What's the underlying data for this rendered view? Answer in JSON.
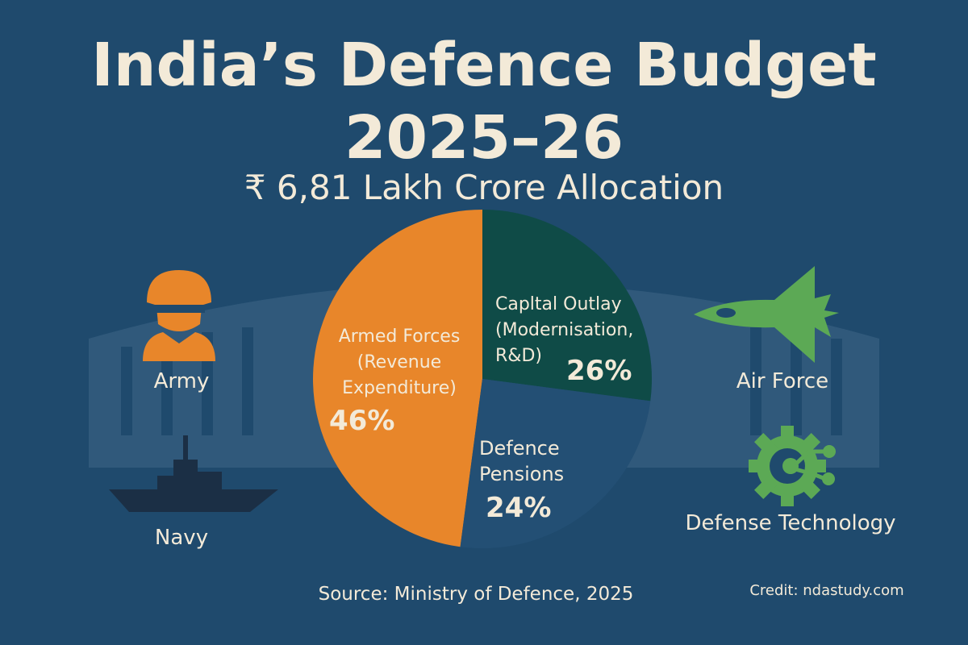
{
  "header": {
    "title_line1": "India’s Defence Budget",
    "title_line2": "2025–26",
    "subtitle": "₹ 6,81 Lakh Crore Allocation"
  },
  "chart_data": {
    "type": "pie",
    "title": "India’s Defence Budget 2025–26",
    "subtitle": "₹ 6,81 Lakh Crore Allocation",
    "slices": [
      {
        "label_lines": [
          "Armed Forces",
          "(Revenue",
          "Expenditure)"
        ],
        "value": 46,
        "value_label": "46%",
        "color": "#e8862a"
      },
      {
        "label_lines": [
          "Capltal Outlay",
          "(Modernisation,",
          "R&D)"
        ],
        "value": 26,
        "value_label": "26%",
        "color": "#0f4b47"
      },
      {
        "label_lines": [
          "Defence",
          "Pensions"
        ],
        "value": 24,
        "value_label": "24%",
        "color": "#234f74"
      }
    ]
  },
  "icons": [
    {
      "name": "soldier-icon",
      "label": "Army",
      "color": "#e8862a"
    },
    {
      "name": "warship-icon",
      "label": "Navy",
      "color": "#1b2f45"
    },
    {
      "name": "fighter-jet-icon",
      "label": "Air Force",
      "color": "#5ca955"
    },
    {
      "name": "gear-circuit-icon",
      "label": "Defense Technology",
      "color": "#5ca955"
    }
  ],
  "footer": {
    "source": "Source: Ministry of Defence, 2025",
    "credit": "Credit: ndastudy.com"
  }
}
